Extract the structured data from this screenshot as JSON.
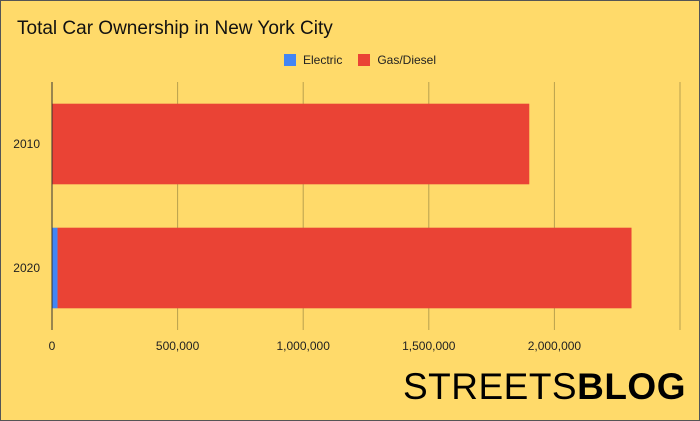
{
  "chart_data": {
    "type": "bar",
    "orientation": "horizontal",
    "stacked": true,
    "title": "Total Car Ownership in New York City",
    "categories": [
      "2010",
      "2020"
    ],
    "series": [
      {
        "name": "Electric",
        "values": [
          0,
          22000
        ],
        "color": "#4285F4"
      },
      {
        "name": "Gas/Diesel",
        "values": [
          1900000,
          2285000
        ],
        "color": "#EA4335"
      }
    ],
    "xlabel": "",
    "ylabel": "",
    "xlim": [
      0,
      2500000
    ],
    "xticks": [
      0,
      500000,
      1000000,
      1500000,
      2000000
    ],
    "xtick_labels": [
      "0",
      "500,000",
      "1,000,000",
      "1,500,000",
      "2,000,000"
    ],
    "grid": "vertical",
    "legend_position": "top"
  },
  "branding": {
    "part1": "STREETS",
    "part2": "BLOG"
  },
  "colors": {
    "background": "#FFDA6A",
    "gridline": "#B8A04E"
  }
}
